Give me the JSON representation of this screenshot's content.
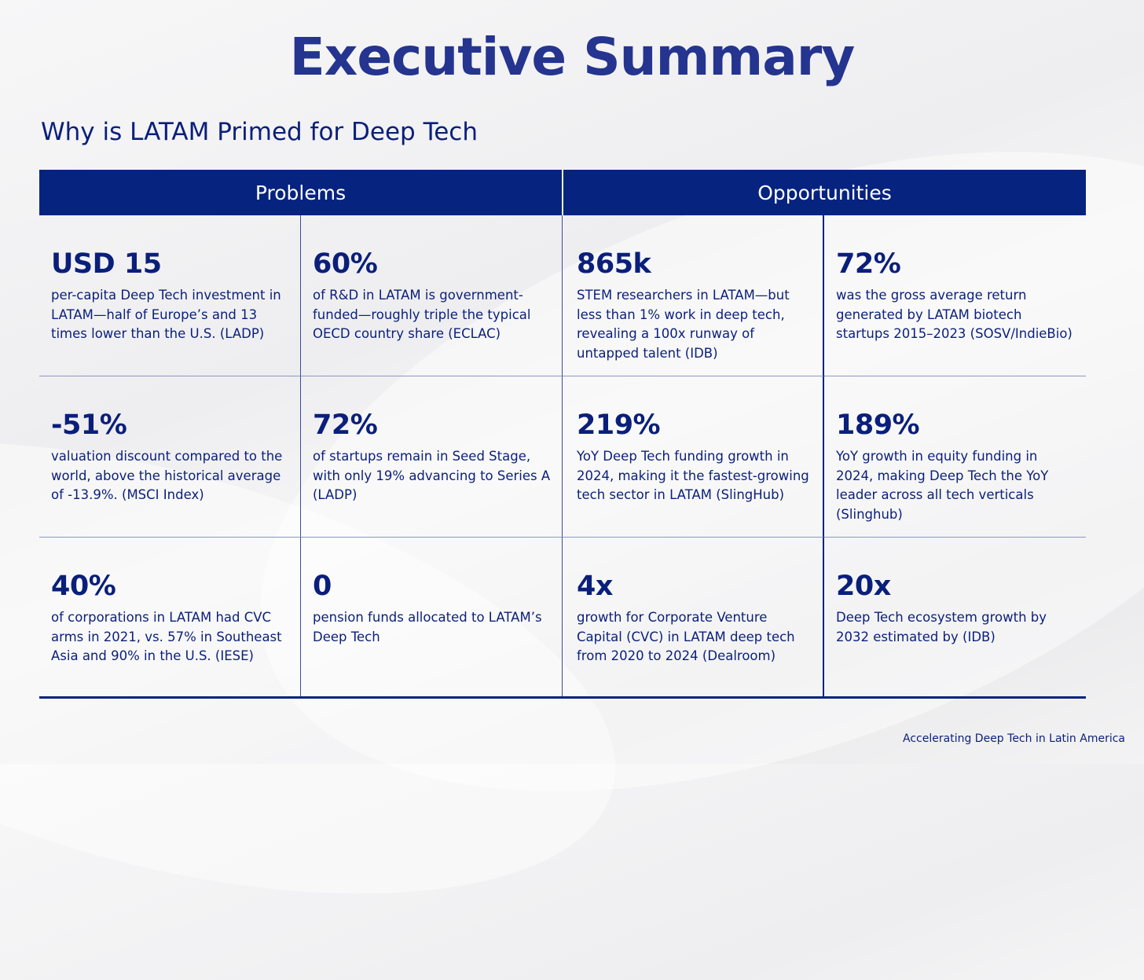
{
  "title": "Executive Summary",
  "subtitle": "Why is LATAM Primed for Deep Tech",
  "headers": {
    "problems": "Problems",
    "opportunities": "Opportunities"
  },
  "cells": [
    {
      "value": "USD 15",
      "text": "per-capita Deep Tech investment in LATAM—half of Europe’s and 13 times lower than the U.S. (LADP)"
    },
    {
      "value": "60%",
      "text": "of R&D in LATAM is government-funded—roughly triple the typical OECD country share (ECLAC)"
    },
    {
      "value": "865k",
      "text": "STEM researchers in LATAM—but less than 1% work in deep tech, revealing a 100x runway of untapped talent (IDB)"
    },
    {
      "value": "72%",
      "text": "was the gross average return generated by LATAM biotech startups 2015–2023 (SOSV/IndieBio)"
    },
    {
      "value": "-51%",
      "text": "valuation discount compared to the world, above the historical average of -13.9%. (MSCI Index)"
    },
    {
      "value": "72%",
      "text": "of startups remain in Seed Stage, with only 19% advancing to Series A (LADP)"
    },
    {
      "value": "219%",
      "text": "YoY Deep Tech funding growth in 2024, making it the fastest-growing tech sector in LATAM (SlingHub)"
    },
    {
      "value": "189%",
      "text": "YoY growth in equity funding in 2024, making Deep Tech the YoY leader across all tech verticals (Slinghub)"
    },
    {
      "value": "40%",
      "text": "of corporations in LATAM had CVC arms in 2021, vs. 57% in Southeast Asia and 90% in the U.S. (IESE)"
    },
    {
      "value": "0",
      "text": "pension funds allocated to LATAM’s Deep Tech"
    },
    {
      "value": "4x",
      "text": "growth for Corporate Venture Capital (CVC) in LATAM deep tech from 2020 to 2024 (Dealroom)"
    },
    {
      "value": "20x",
      "text": "Deep Tech ecosystem growth by 2032 estimated by (IDB)"
    }
  ],
  "footer": "Accelerating Deep Tech  in Latin America"
}
